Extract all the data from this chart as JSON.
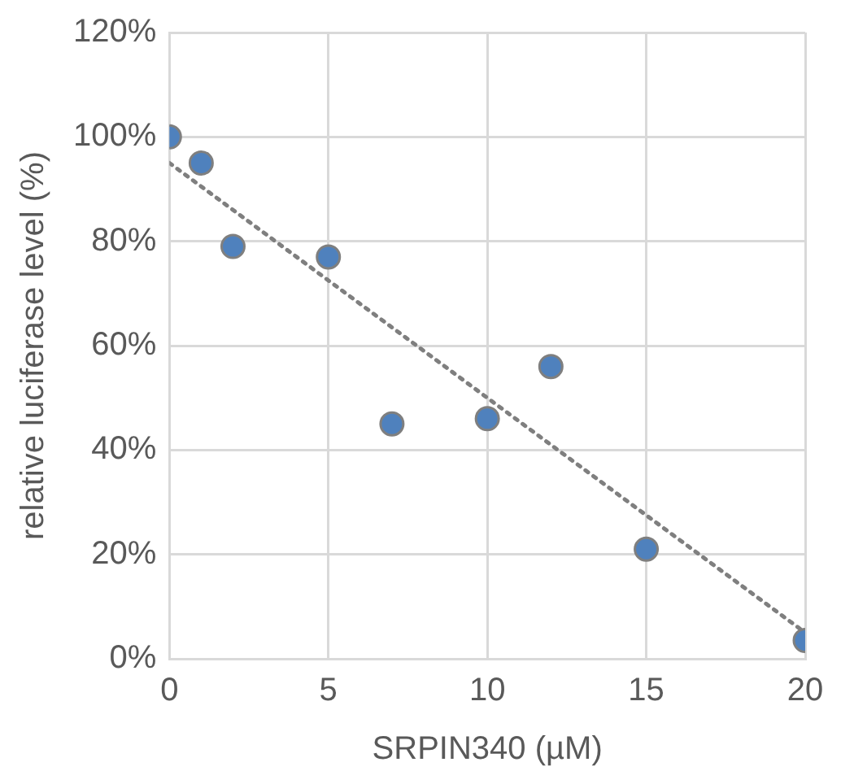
{
  "chart_data": {
    "type": "scatter",
    "xlabel": "SRPIN340 (µM)",
    "ylabel": "relative luciferase level (%)",
    "xlim": [
      0,
      20
    ],
    "xticks": [
      0,
      5,
      10,
      15,
      20
    ],
    "ylim": [
      0,
      120
    ],
    "yticks": [
      {
        "value": 0,
        "label": "0%"
      },
      {
        "value": 20,
        "label": "20%"
      },
      {
        "value": 40,
        "label": "40%"
      },
      {
        "value": 60,
        "label": "60%"
      },
      {
        "value": 80,
        "label": "80%"
      },
      {
        "value": 100,
        "label": "100%"
      },
      {
        "value": 120,
        "label": "120%"
      }
    ],
    "grid": true,
    "legend": false,
    "marker": "circle",
    "series": [
      {
        "type": "scatter",
        "color": "#4f81bd",
        "x": [
          0,
          1,
          2,
          5,
          7,
          10,
          12,
          15,
          20
        ],
        "values": [
          100,
          95,
          79,
          77,
          45,
          46,
          56,
          21,
          3.5
        ]
      },
      {
        "type": "line",
        "color": "#7f7f7f",
        "line_style": "dotted",
        "marker": "none",
        "x": [
          0,
          20
        ],
        "values": [
          95,
          5
        ]
      }
    ]
  }
}
